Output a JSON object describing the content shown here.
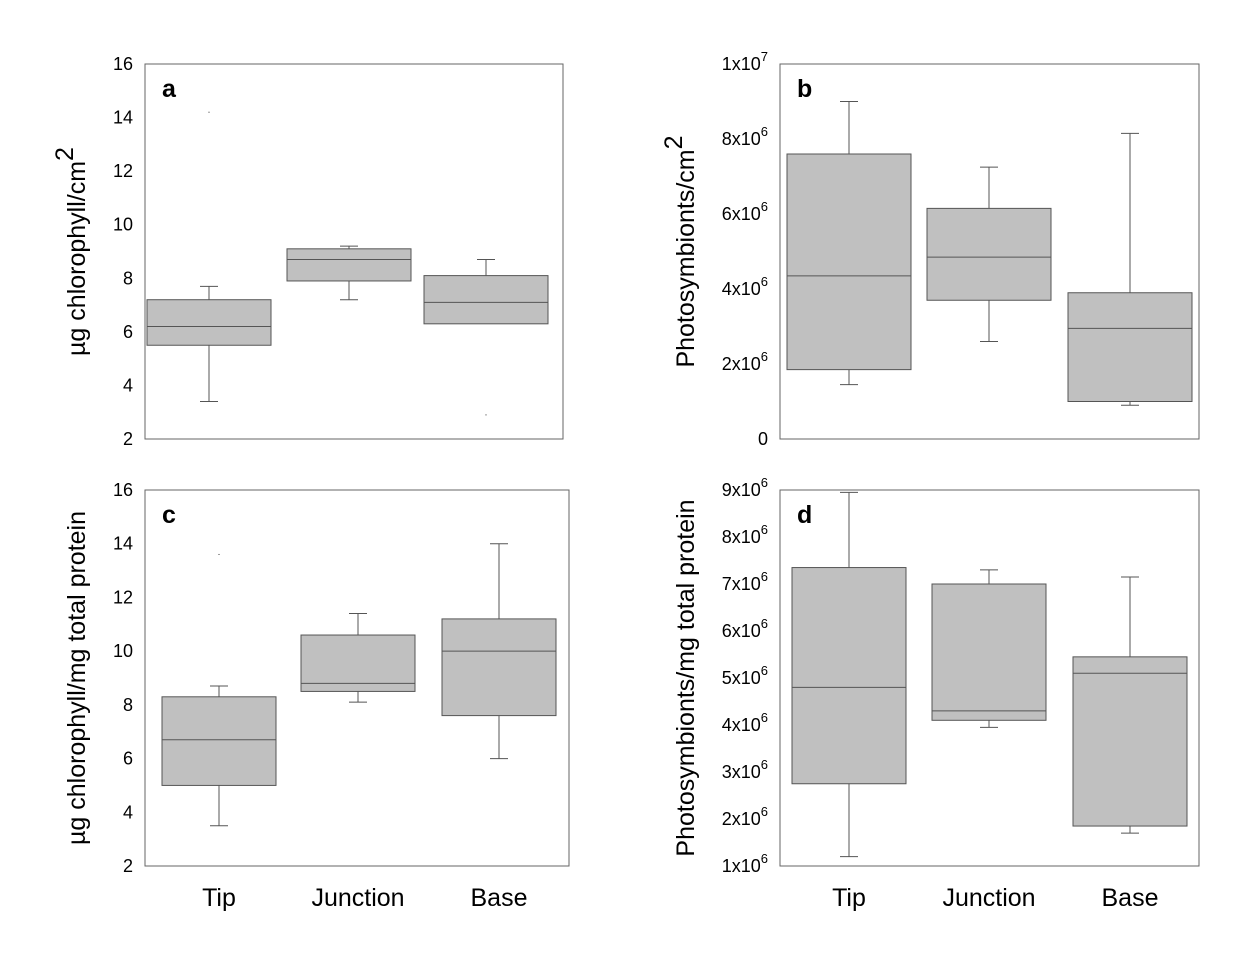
{
  "chart_data": [
    {
      "type": "box",
      "panel_label": "a",
      "ylabel": "µg chlorophyll/cm",
      "ylabel_sup": "2",
      "ylim": [
        2,
        16
      ],
      "yticks": [
        {
          "value": 2,
          "label": "2"
        },
        {
          "value": 4,
          "label": "4"
        },
        {
          "value": 6,
          "label": "6"
        },
        {
          "value": 8,
          "label": "8"
        },
        {
          "value": 10,
          "label": "10"
        },
        {
          "value": 12,
          "label": "12"
        },
        {
          "value": 14,
          "label": "14"
        },
        {
          "value": 16,
          "label": "16"
        }
      ],
      "categories": [
        "Tip",
        "Junction",
        "Base"
      ],
      "show_categories": false,
      "boxes": [
        {
          "category": "Tip",
          "whisker_low": 3.4,
          "q1": 5.5,
          "median": 6.2,
          "q3": 7.2,
          "whisker_high": 7.7,
          "outliers": [
            14.2
          ]
        },
        {
          "category": "Junction",
          "whisker_low": 7.2,
          "q1": 7.9,
          "median": 8.7,
          "q3": 9.1,
          "whisker_high": 9.2,
          "outliers": []
        },
        {
          "category": "Base",
          "whisker_low": null,
          "q1": 6.3,
          "median": 7.1,
          "q3": 8.1,
          "whisker_high": 8.7,
          "outliers": [
            2.9
          ]
        }
      ]
    },
    {
      "type": "box",
      "panel_label": "b",
      "ylabel": "Photosymbionts/cm",
      "ylabel_sup": "2",
      "ylim": [
        0,
        10000000
      ],
      "yticks": [
        {
          "value": 0,
          "label": "0",
          "sup": ""
        },
        {
          "value": 2000000,
          "label": "2x10",
          "sup": "6"
        },
        {
          "value": 4000000,
          "label": "4x10",
          "sup": "6"
        },
        {
          "value": 6000000,
          "label": "6x10",
          "sup": "6"
        },
        {
          "value": 8000000,
          "label": "8x10",
          "sup": "6"
        },
        {
          "value": 10000000,
          "label": "1x10",
          "sup": "7"
        }
      ],
      "categories": [
        "Tip",
        "Junction",
        "Base"
      ],
      "show_categories": false,
      "boxes": [
        {
          "category": "Tip",
          "whisker_low": 1450000,
          "q1": 1850000,
          "median": 4350000,
          "q3": 7600000,
          "whisker_high": 9000000,
          "outliers": []
        },
        {
          "category": "Junction",
          "whisker_low": 2600000,
          "q1": 3700000,
          "median": 4850000,
          "q3": 6150000,
          "whisker_high": 7250000,
          "outliers": []
        },
        {
          "category": "Base",
          "whisker_low": 900000,
          "q1": 1000000,
          "median": 2950000,
          "q3": 3900000,
          "whisker_high": 8150000,
          "outliers": []
        }
      ]
    },
    {
      "type": "box",
      "panel_label": "c",
      "ylabel": "µg chlorophyll/mg total protein",
      "ylabel_sup": "",
      "ylim": [
        2,
        16
      ],
      "yticks": [
        {
          "value": 2,
          "label": "2"
        },
        {
          "value": 4,
          "label": "4"
        },
        {
          "value": 6,
          "label": "6"
        },
        {
          "value": 8,
          "label": "8"
        },
        {
          "value": 10,
          "label": "10"
        },
        {
          "value": 12,
          "label": "12"
        },
        {
          "value": 14,
          "label": "14"
        },
        {
          "value": 16,
          "label": "16"
        }
      ],
      "categories": [
        "Tip",
        "Junction",
        "Base"
      ],
      "show_categories": true,
      "boxes": [
        {
          "category": "Tip",
          "whisker_low": 3.5,
          "q1": 5.0,
          "median": 6.7,
          "q3": 8.3,
          "whisker_high": 8.7,
          "outliers": [
            13.6
          ]
        },
        {
          "category": "Junction",
          "whisker_low": 8.1,
          "q1": 8.5,
          "median": 8.8,
          "q3": 10.6,
          "whisker_high": 11.4,
          "outliers": []
        },
        {
          "category": "Base",
          "whisker_low": 6.0,
          "q1": 7.6,
          "median": 10.0,
          "q3": 11.2,
          "whisker_high": 14.0,
          "outliers": []
        }
      ]
    },
    {
      "type": "box",
      "panel_label": "d",
      "ylabel": "Photosymbionts/mg total protein",
      "ylabel_sup": "",
      "ylim": [
        1000000,
        9000000
      ],
      "yticks": [
        {
          "value": 1000000,
          "label": "1x10",
          "sup": "6"
        },
        {
          "value": 2000000,
          "label": "2x10",
          "sup": "6"
        },
        {
          "value": 3000000,
          "label": "3x10",
          "sup": "6"
        },
        {
          "value": 4000000,
          "label": "4x10",
          "sup": "6"
        },
        {
          "value": 5000000,
          "label": "5x10",
          "sup": "6"
        },
        {
          "value": 6000000,
          "label": "6x10",
          "sup": "6"
        },
        {
          "value": 7000000,
          "label": "7x10",
          "sup": "6"
        },
        {
          "value": 8000000,
          "label": "8x10",
          "sup": "6"
        },
        {
          "value": 9000000,
          "label": "9x10",
          "sup": "6"
        }
      ],
      "categories": [
        "Tip",
        "Junction",
        "Base"
      ],
      "show_categories": true,
      "boxes": [
        {
          "category": "Tip",
          "whisker_low": 1200000,
          "q1": 2750000,
          "median": 4800000,
          "q3": 7350000,
          "whisker_high": 8950000,
          "outliers": []
        },
        {
          "category": "Junction",
          "whisker_low": 3950000,
          "q1": 4100000,
          "median": 4300000,
          "q3": 7000000,
          "whisker_high": 7300000,
          "outliers": []
        },
        {
          "category": "Base",
          "whisker_low": 1700000,
          "q1": 1850000,
          "median": 5100000,
          "q3": 5450000,
          "whisker_high": 7150000,
          "outliers": []
        }
      ]
    }
  ],
  "colors": {
    "box_fill": "#c0c0c0",
    "line": "#555555",
    "frame": "#666666"
  }
}
